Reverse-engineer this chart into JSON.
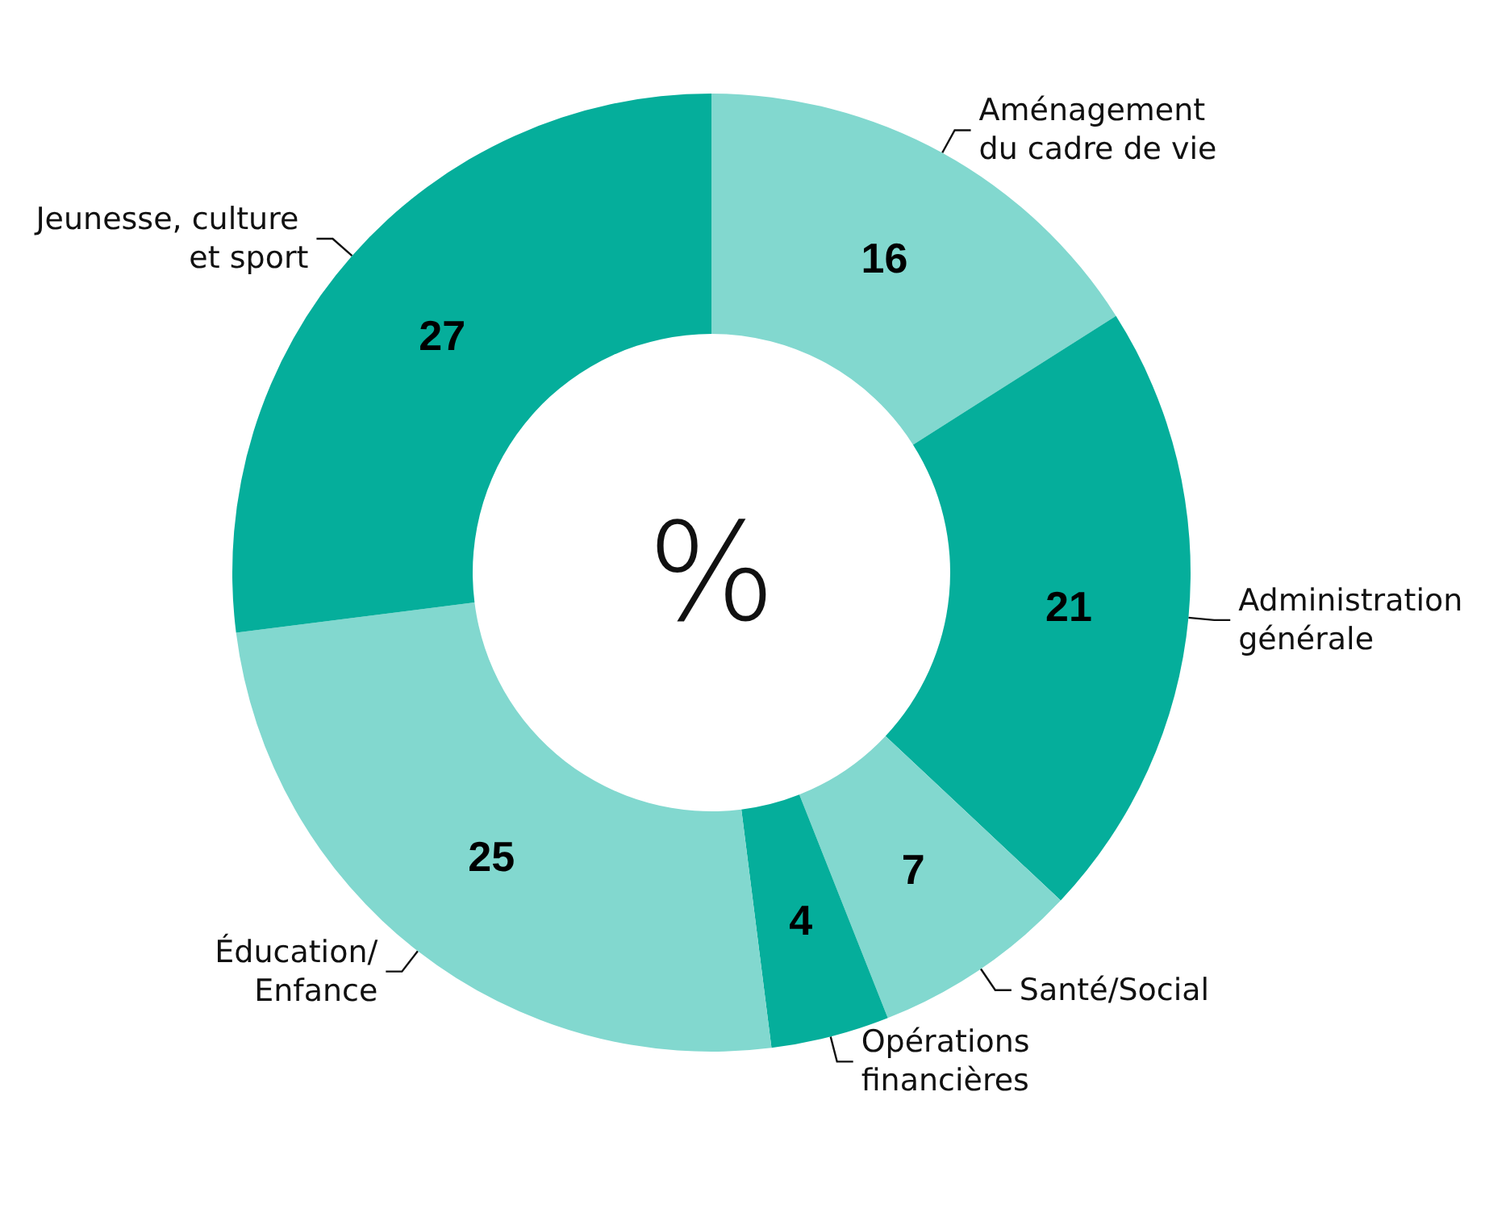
{
  "chart_data": {
    "type": "donut",
    "categories": [
      "Aménagement du cadre de vie",
      "Administration générale",
      "Santé/Social",
      "Opérations financières",
      "Éducation/Enfance",
      "Jeunesse, culture et sport"
    ],
    "values": [
      16,
      21,
      7,
      4,
      25,
      27
    ],
    "colors": [
      "#82d8cf",
      "#05ae9b",
      "#82d8cf",
      "#05ae9b",
      "#82d8cf",
      "#05ae9b"
    ],
    "data_labels": true,
    "annotations": [
      "%"
    ]
  }
}
